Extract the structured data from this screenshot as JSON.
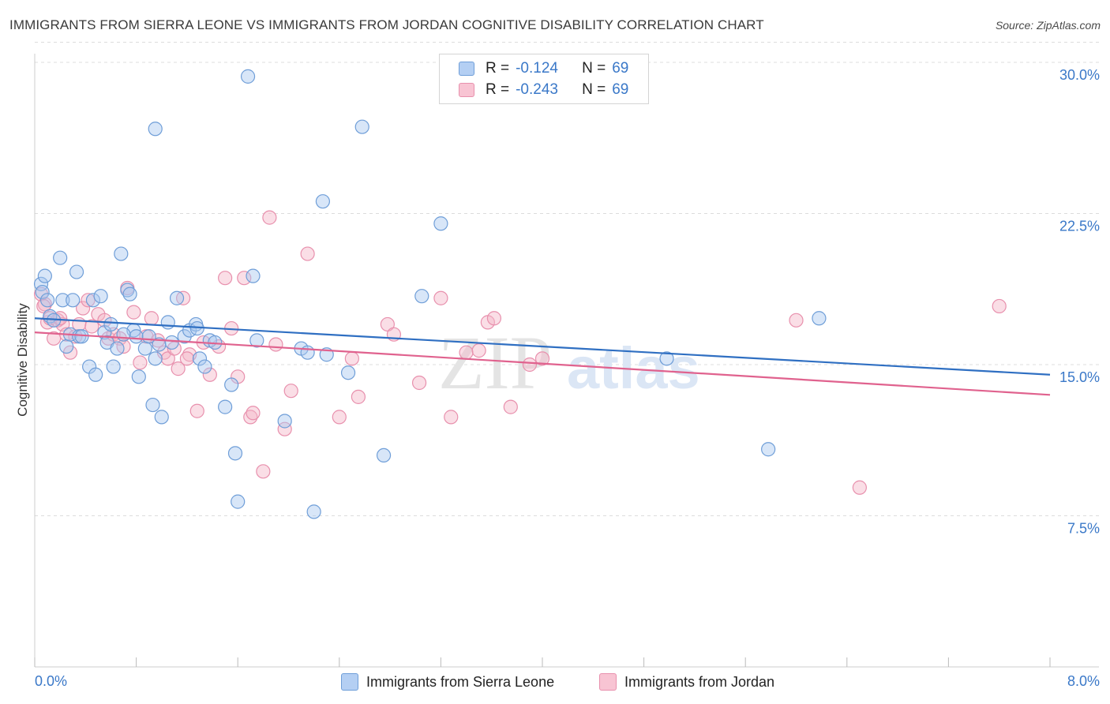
{
  "title": "IMMIGRANTS FROM SIERRA LEONE VS IMMIGRANTS FROM JORDAN COGNITIVE DISABILITY CORRELATION CHART",
  "source": "Source: ZipAtlas.com",
  "watermark": {
    "zip": "ZIP",
    "atlas": "atlas"
  },
  "colors": {
    "blue_fill": "#a9c8f0",
    "blue_stroke": "#6f9ed8",
    "blue_line": "#2f6fc2",
    "pink_fill": "#f5b5c8",
    "pink_stroke": "#e890ad",
    "pink_line": "#e0628e",
    "axis_text": "#3a78c8",
    "grid": "#dcdcdc"
  },
  "legend_top": {
    "rows": [
      {
        "r_label": "R =",
        "r_value": "-0.124",
        "n_label": "N =",
        "n_value": "69"
      },
      {
        "r_label": "R =",
        "r_value": "-0.243",
        "n_label": "N =",
        "n_value": "69"
      }
    ]
  },
  "legend_bottom": {
    "blue_label": "Immigrants from Sierra Leone",
    "pink_label": "Immigrants from Jordan"
  },
  "chart_data": {
    "type": "scatter",
    "title": "IMMIGRANTS FROM SIERRA LEONE VS IMMIGRANTS FROM JORDAN COGNITIVE DISABILITY CORRELATION CHART",
    "xlabel": "",
    "ylabel": "Cognitive Disability",
    "xlim": [
      0,
      8
    ],
    "ylim": [
      0,
      31
    ],
    "x_tick_labels": [
      "0.0%",
      "8.0%"
    ],
    "y_ticks": [
      7.5,
      15.0,
      22.5,
      30.0
    ],
    "y_tick_labels": [
      "7.5%",
      "15.0%",
      "22.5%",
      "30.0%"
    ],
    "grid": "horizontal dashed",
    "legend": "top-center",
    "series": [
      {
        "name": "Immigrants from Sierra Leone",
        "color": "blue",
        "r": -0.124,
        "n": 69,
        "trend": {
          "x0": 0.0,
          "y0": 17.3,
          "x1": 8.0,
          "y1": 14.5
        },
        "points": [
          [
            0.05,
            19.0
          ],
          [
            0.08,
            19.4
          ],
          [
            0.06,
            18.6
          ],
          [
            0.1,
            18.2
          ],
          [
            0.12,
            17.4
          ],
          [
            0.15,
            17.2
          ],
          [
            0.2,
            20.3
          ],
          [
            0.22,
            18.2
          ],
          [
            0.25,
            15.9
          ],
          [
            0.28,
            16.5
          ],
          [
            0.33,
            19.6
          ],
          [
            0.35,
            16.4
          ],
          [
            0.3,
            18.2
          ],
          [
            0.37,
            16.4
          ],
          [
            0.43,
            14.9
          ],
          [
            0.48,
            14.5
          ],
          [
            0.46,
            18.2
          ],
          [
            0.52,
            18.4
          ],
          [
            0.55,
            16.6
          ],
          [
            0.57,
            16.1
          ],
          [
            0.6,
            17.0
          ],
          [
            0.62,
            14.9
          ],
          [
            0.65,
            15.8
          ],
          [
            0.68,
            20.5
          ],
          [
            0.73,
            18.7
          ],
          [
            0.75,
            18.5
          ],
          [
            0.78,
            16.7
          ],
          [
            0.8,
            16.4
          ],
          [
            0.82,
            14.4
          ],
          [
            0.87,
            15.8
          ],
          [
            0.9,
            16.4
          ],
          [
            0.93,
            13.0
          ],
          [
            0.95,
            15.3
          ],
          [
            0.98,
            16.0
          ],
          [
            1.0,
            12.4
          ],
          [
            1.05,
            17.1
          ],
          [
            1.08,
            16.1
          ],
          [
            1.12,
            18.3
          ],
          [
            1.18,
            16.4
          ],
          [
            1.22,
            16.7
          ],
          [
            1.27,
            17.0
          ],
          [
            1.3,
            15.3
          ],
          [
            1.34,
            14.9
          ],
          [
            1.38,
            16.2
          ],
          [
            1.42,
            16.1
          ],
          [
            1.5,
            12.9
          ],
          [
            1.58,
            10.6
          ],
          [
            1.6,
            8.2
          ],
          [
            1.68,
            29.3
          ],
          [
            1.72,
            19.4
          ],
          [
            1.75,
            16.2
          ],
          [
            1.97,
            12.2
          ],
          [
            2.1,
            15.8
          ],
          [
            2.15,
            15.6
          ],
          [
            2.2,
            7.7
          ],
          [
            2.27,
            23.1
          ],
          [
            2.47,
            14.6
          ],
          [
            2.75,
            10.5
          ],
          [
            3.05,
            18.4
          ],
          [
            3.2,
            22.0
          ],
          [
            0.95,
            26.7
          ],
          [
            2.58,
            26.8
          ],
          [
            1.28,
            16.8
          ],
          [
            2.3,
            15.5
          ],
          [
            4.98,
            15.3
          ],
          [
            5.78,
            10.8
          ],
          [
            6.18,
            17.3
          ],
          [
            1.55,
            14.0
          ],
          [
            0.7,
            16.5
          ]
        ]
      },
      {
        "name": "Immigrants from Jordan",
        "color": "pink",
        "r": -0.243,
        "n": 69,
        "trend": {
          "x0": 0.0,
          "y0": 16.6,
          "x1": 8.0,
          "y1": 13.5
        },
        "points": [
          [
            0.05,
            18.5
          ],
          [
            0.08,
            18.0
          ],
          [
            0.1,
            17.1
          ],
          [
            0.12,
            17.3
          ],
          [
            0.15,
            16.3
          ],
          [
            0.18,
            17.2
          ],
          [
            0.22,
            17.0
          ],
          [
            0.25,
            16.5
          ],
          [
            0.28,
            15.6
          ],
          [
            0.32,
            16.4
          ],
          [
            0.35,
            17.0
          ],
          [
            0.38,
            17.8
          ],
          [
            0.42,
            18.2
          ],
          [
            0.45,
            16.9
          ],
          [
            0.5,
            17.5
          ],
          [
            0.55,
            17.2
          ],
          [
            0.58,
            16.3
          ],
          [
            0.62,
            16.5
          ],
          [
            0.67,
            16.3
          ],
          [
            0.7,
            15.9
          ],
          [
            0.73,
            18.8
          ],
          [
            0.78,
            17.6
          ],
          [
            0.83,
            15.1
          ],
          [
            0.88,
            16.4
          ],
          [
            0.92,
            17.3
          ],
          [
            0.97,
            16.2
          ],
          [
            1.02,
            15.6
          ],
          [
            1.05,
            15.3
          ],
          [
            1.1,
            15.8
          ],
          [
            1.13,
            14.8
          ],
          [
            1.17,
            18.3
          ],
          [
            1.22,
            15.5
          ],
          [
            1.28,
            12.7
          ],
          [
            1.33,
            16.1
          ],
          [
            1.38,
            14.5
          ],
          [
            1.45,
            15.9
          ],
          [
            1.5,
            19.3
          ],
          [
            1.55,
            16.8
          ],
          [
            1.6,
            14.4
          ],
          [
            1.65,
            19.3
          ],
          [
            1.7,
            12.4
          ],
          [
            1.72,
            12.6
          ],
          [
            1.8,
            9.7
          ],
          [
            1.85,
            22.3
          ],
          [
            1.9,
            16.0
          ],
          [
            1.97,
            11.8
          ],
          [
            2.02,
            13.7
          ],
          [
            2.15,
            20.5
          ],
          [
            2.4,
            12.4
          ],
          [
            2.5,
            15.3
          ],
          [
            2.55,
            13.4
          ],
          [
            2.78,
            17.0
          ],
          [
            2.83,
            16.5
          ],
          [
            3.03,
            14.1
          ],
          [
            3.2,
            18.3
          ],
          [
            3.28,
            12.4
          ],
          [
            3.4,
            15.6
          ],
          [
            3.5,
            15.7
          ],
          [
            3.57,
            17.1
          ],
          [
            3.62,
            17.3
          ],
          [
            3.75,
            12.9
          ],
          [
            3.9,
            15.0
          ],
          [
            4.0,
            15.3
          ],
          [
            6.0,
            17.2
          ],
          [
            6.5,
            8.9
          ],
          [
            7.6,
            17.9
          ],
          [
            0.07,
            17.9
          ],
          [
            1.2,
            15.3
          ],
          [
            0.2,
            17.3
          ]
        ]
      }
    ]
  }
}
